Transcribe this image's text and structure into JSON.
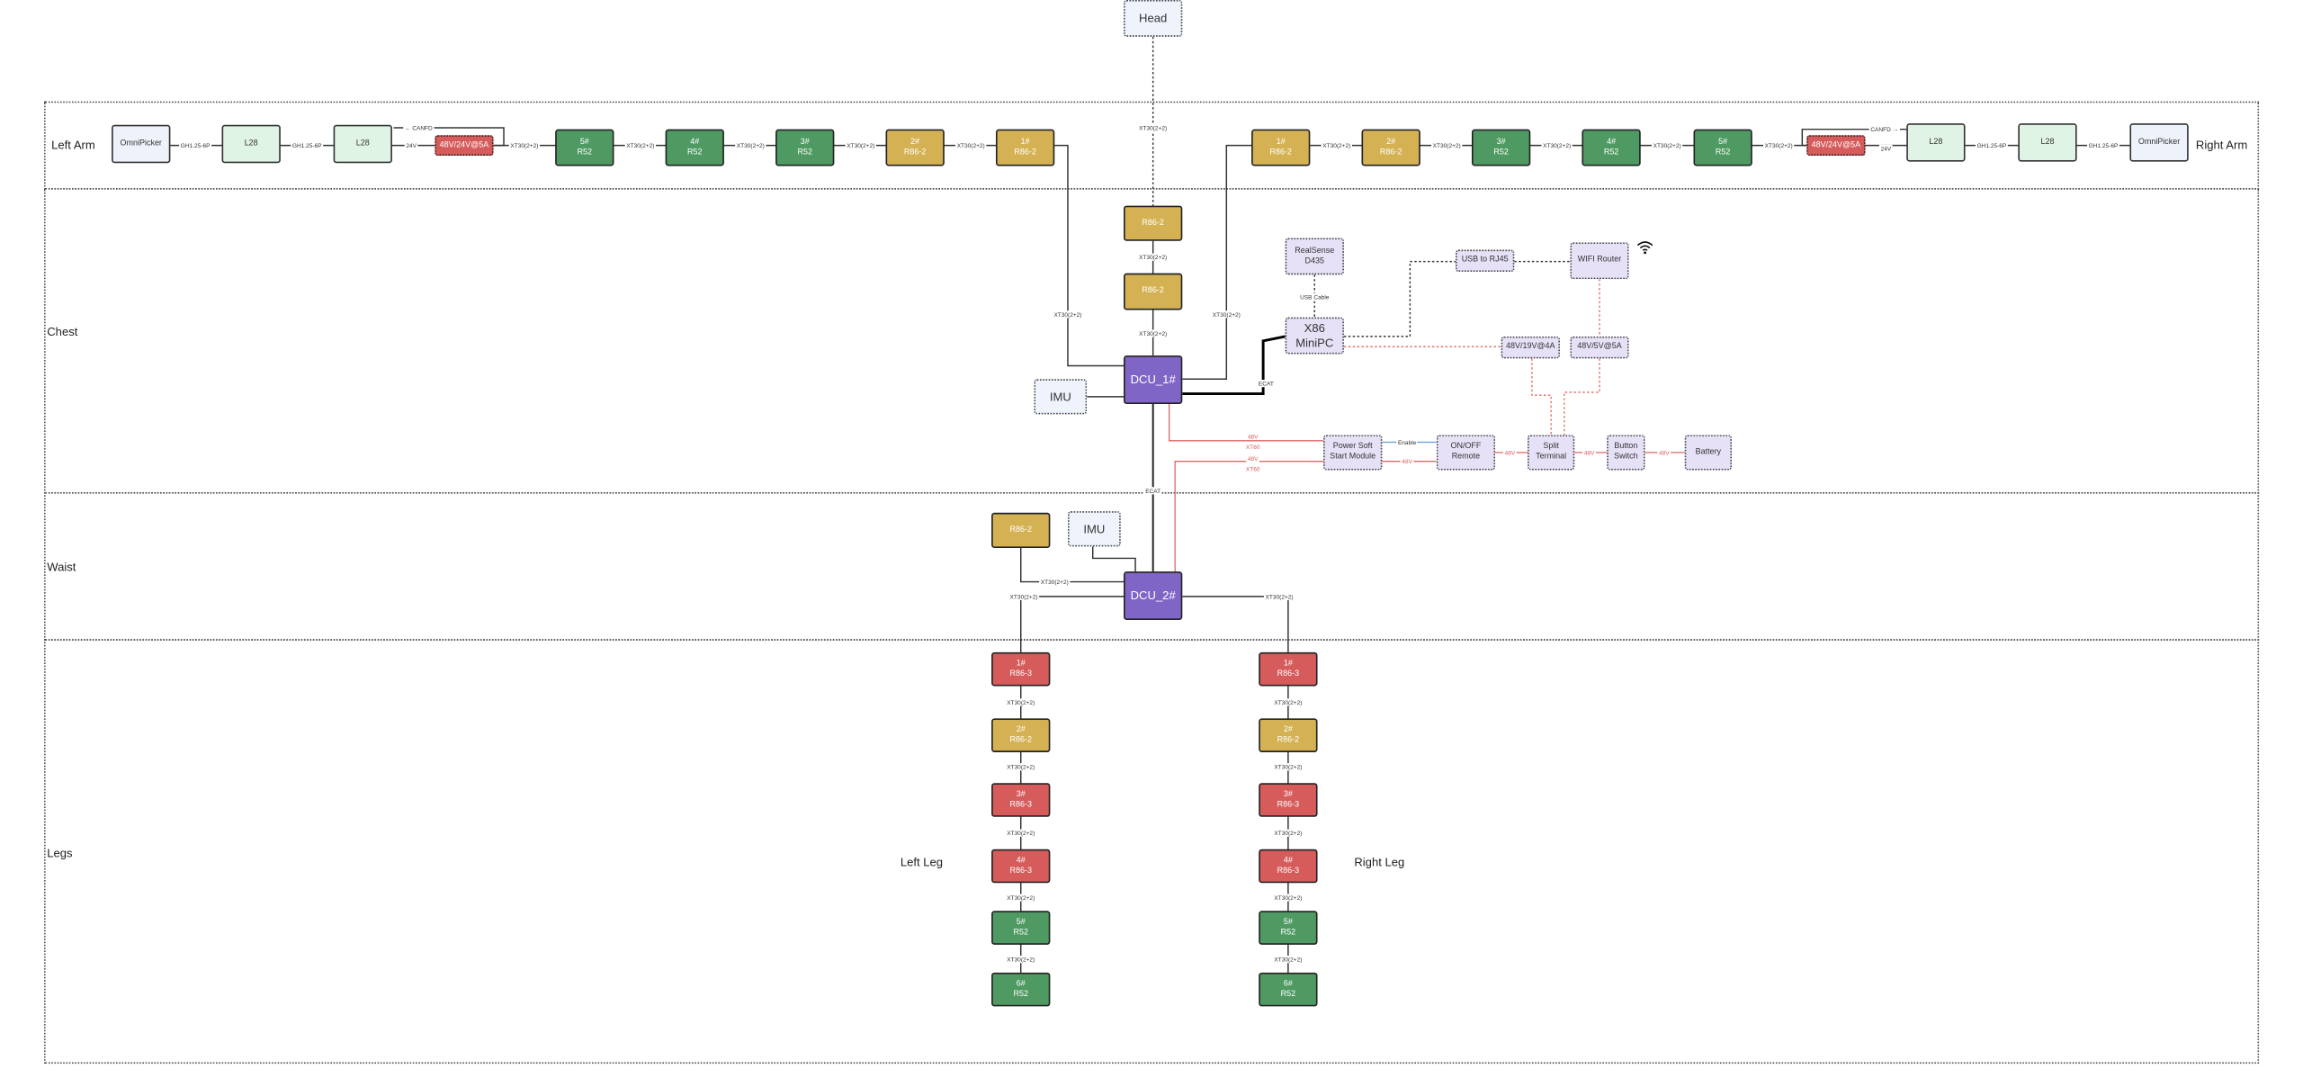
{
  "zones": {
    "left_arm": "Left Arm",
    "right_arm": "Right Arm",
    "chest": "Chest",
    "waist": "Waist",
    "legs": "Legs",
    "left_leg": "Left Leg",
    "right_leg": "Right Leg"
  },
  "colors": {
    "r52": "#4e9a62",
    "r86_2": "#d4b254",
    "r86_3": "#d65c5c",
    "dcu": "#7f66c6",
    "compute": "#e7e1f7",
    "power_wire": "#e06666",
    "enable_wire": "#6fa8dc"
  },
  "icons": {
    "wifi": "wifi-icon"
  },
  "nodes": {
    "head": [
      "Head"
    ],
    "la_omni": [
      "OmniPicker"
    ],
    "la_l28a": [
      "L28"
    ],
    "la_l28b": [
      "L28"
    ],
    "la_psu": [
      "48V/24V@5A"
    ],
    "la_5": [
      "5#",
      "R52"
    ],
    "la_4": [
      "4#",
      "R52"
    ],
    "la_3": [
      "3#",
      "R52"
    ],
    "la_2": [
      "2#",
      "R86-2"
    ],
    "la_1": [
      "1#",
      "R86-2"
    ],
    "ra_1": [
      "1#",
      "R86-2"
    ],
    "ra_2": [
      "2#",
      "R86-2"
    ],
    "ra_3": [
      "3#",
      "R52"
    ],
    "ra_4": [
      "4#",
      "R52"
    ],
    "ra_5": [
      "5#",
      "R52"
    ],
    "ra_psu": [
      "48V/24V@5A"
    ],
    "ra_l28a": [
      "L28"
    ],
    "ra_l28b": [
      "L28"
    ],
    "ra_omni": [
      "OmniPicker"
    ],
    "neck_1": [
      "R86-2"
    ],
    "neck_2": [
      "R86-2"
    ],
    "dcu1": [
      "DCU_1#"
    ],
    "imu1": [
      "IMU"
    ],
    "realsense": [
      "RealSense",
      "D435"
    ],
    "minipc": [
      "X86",
      "MiniPC"
    ],
    "usb_rj45": [
      "USB to RJ45"
    ],
    "wifi_router": [
      "WIFI Router"
    ],
    "psu_19v": [
      "48V/19V@4A"
    ],
    "psu_5v": [
      "48V/5V@5A"
    ],
    "soft_start": [
      "Power Soft",
      "Start Module"
    ],
    "onoff": [
      "ON/OFF",
      "Remote"
    ],
    "split": [
      "Split",
      "Terminal"
    ],
    "button": [
      "Button",
      "Switch"
    ],
    "battery": [
      "Battery"
    ],
    "waist_motor": [
      "R86-2"
    ],
    "imu2": [
      "IMU"
    ],
    "dcu2": [
      "DCU_2#"
    ],
    "ll_1": [
      "1#",
      "R86-3"
    ],
    "ll_2": [
      "2#",
      "R86-2"
    ],
    "ll_3": [
      "3#",
      "R86-3"
    ],
    "ll_4": [
      "4#",
      "R86-3"
    ],
    "ll_5": [
      "5#",
      "R52"
    ],
    "ll_6": [
      "6#",
      "R52"
    ],
    "rl_1": [
      "1#",
      "R86-3"
    ],
    "rl_2": [
      "2#",
      "R86-2"
    ],
    "rl_3": [
      "3#",
      "R86-3"
    ],
    "rl_4": [
      "4#",
      "R86-3"
    ],
    "rl_5": [
      "5#",
      "R52"
    ],
    "rl_6": [
      "6#",
      "R52"
    ]
  },
  "connectors": {
    "la_c1": "GH1.25-6P",
    "la_c2": "GH1.25-6P",
    "la_24v": "24V",
    "la_canfd": "← CANFD",
    "la_c3": "XT30(2+2)",
    "la_c4": "XT30(2+2)",
    "la_c5": "XT30(2+2)",
    "la_c6": "XT30(2+2)",
    "la_c7": "XT30(2+2)",
    "ra_c1": "XT30(2+2)",
    "ra_c2": "XT30(2+2)",
    "ra_c3": "XT30(2+2)",
    "ra_c4": "XT30(2+2)",
    "ra_c5": "XT30(2+2)",
    "ra_canfd": "CANFD →",
    "ra_24v": "24V",
    "ra_c6": "GH1.25-6P",
    "ra_c7": "GH1.25-6P",
    "head_c": "XT30(2+2)",
    "neck_c1": "XT30(2+2)",
    "neck_c2": "XT30(2+2)",
    "la_dcu": "XT30(2+2)",
    "ra_dcu": "XT30(2+2)",
    "ecat_pc": "ECAT",
    "usb_cable": "USB Cable",
    "ecat_dcu": "ECAT",
    "p1_v": "48V",
    "p1_t": "XT60",
    "p2_v": "48V",
    "p2_t": "XT60",
    "enable": "Enable",
    "ss_48": "48V",
    "on_48": "48V",
    "sp_48": "48V",
    "bt_48": "48V",
    "waist_c": "XT30(2+2)",
    "ll_c0": "XT30(2+2)",
    "rl_c0": "XT30(2+2)",
    "ll_c1": "XT30(2+2)",
    "ll_c2": "XT30(2+2)",
    "ll_c3": "XT30(2+2)",
    "ll_c4": "XT30(2+2)",
    "ll_c5": "XT30(2+2)",
    "rl_c1": "XT30(2+2)",
    "rl_c2": "XT30(2+2)",
    "rl_c3": "XT30(2+2)",
    "rl_c4": "XT30(2+2)",
    "rl_c5": "XT30(2+2)"
  }
}
